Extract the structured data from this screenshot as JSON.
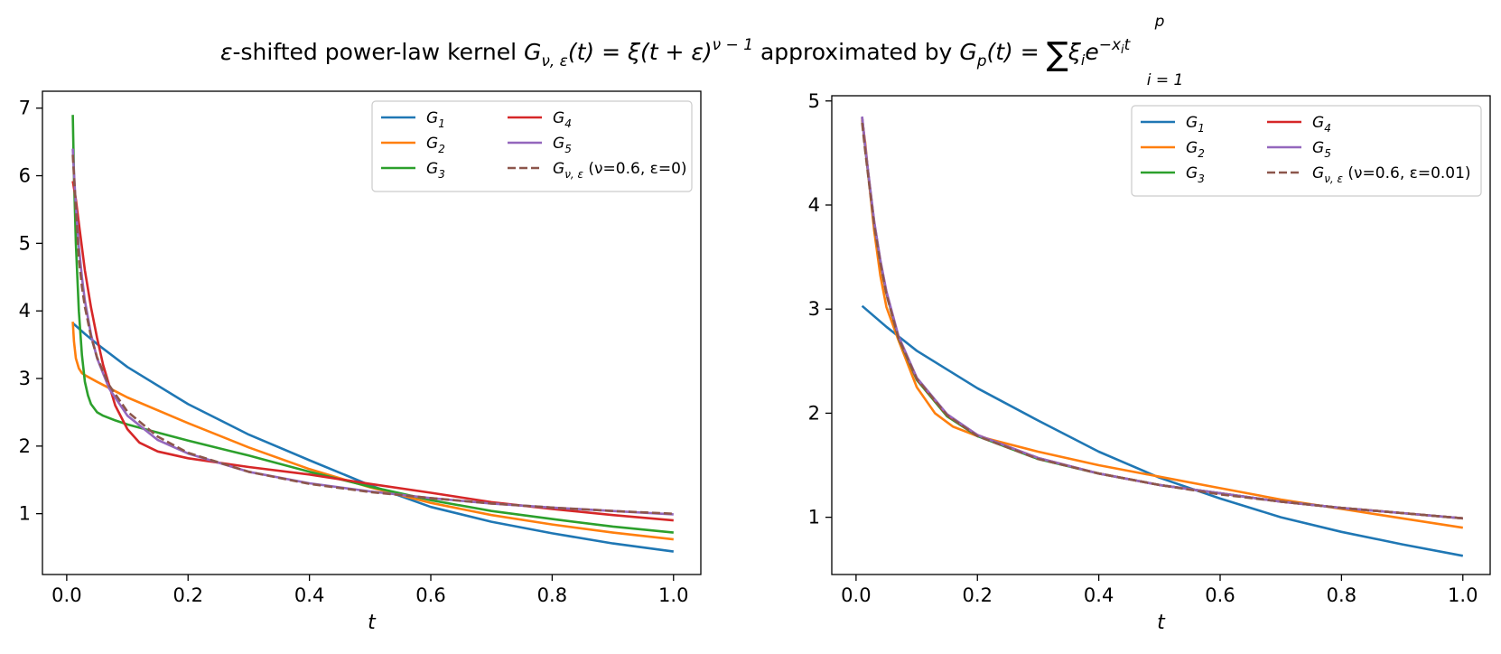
{
  "title": {
    "prefix": "ε",
    "part1": "-shifted power-law kernel ",
    "G": "G",
    "sub_nu_eps": "ν, ε",
    "eq1": "(t) = ξ(t + ε)",
    "exp1": "ν − 1",
    "mid": " approximated by ",
    "Gp": "G",
    "sub_p": "p",
    "eq2": "(t) = ",
    "sum": "∑",
    "sum_top": "p",
    "sum_bottom": "i = 1",
    "term": "ξ",
    "term_sub": "i",
    "term_e": "e",
    "exp2": "−x",
    "exp2_sub": "i",
    "exp2_t": "t"
  },
  "chart_data": [
    {
      "type": "line",
      "xlabel": "t",
      "ylabel": "",
      "xlim": [
        -0.04,
        1.045
      ],
      "ylim": [
        0.1,
        7.25
      ],
      "xticks": [
        0.0,
        0.2,
        0.4,
        0.6,
        0.8,
        1.0
      ],
      "xtick_labels": [
        "0.0",
        "0.2",
        "0.4",
        "0.6",
        "0.8",
        "1.0"
      ],
      "yticks": [
        1,
        2,
        3,
        4,
        5,
        6,
        7
      ],
      "ytick_labels": [
        "1",
        "2",
        "3",
        "4",
        "5",
        "6",
        "7"
      ],
      "legend_position": "top-right",
      "legend_columns": 2,
      "series": [
        {
          "name": "G",
          "name_sub": "1",
          "color": "#1f77b4",
          "dashed": false,
          "x": [
            0.01,
            0.03,
            0.05,
            0.1,
            0.2,
            0.3,
            0.4,
            0.5,
            0.6,
            0.7,
            0.8,
            0.9,
            1.0
          ],
          "y": [
            3.82,
            3.66,
            3.51,
            3.17,
            2.62,
            2.17,
            1.79,
            1.42,
            1.1,
            0.88,
            0.71,
            0.56,
            0.44
          ]
        },
        {
          "name": "G",
          "name_sub": "2",
          "color": "#ff7f0e",
          "dashed": false,
          "x": [
            0.01,
            0.012,
            0.015,
            0.02,
            0.025,
            0.03,
            0.05,
            0.1,
            0.2,
            0.3,
            0.4,
            0.5,
            0.6,
            0.7,
            0.8,
            0.9,
            1.0
          ],
          "y": [
            3.84,
            3.55,
            3.3,
            3.15,
            3.08,
            3.05,
            2.95,
            2.72,
            2.34,
            1.98,
            1.66,
            1.39,
            1.16,
            0.98,
            0.84,
            0.72,
            0.62
          ]
        },
        {
          "name": "G",
          "name_sub": "3",
          "color": "#2ca02c",
          "dashed": false,
          "x": [
            0.01,
            0.012,
            0.015,
            0.02,
            0.025,
            0.03,
            0.035,
            0.04,
            0.05,
            0.06,
            0.08,
            0.1,
            0.15,
            0.2,
            0.3,
            0.4,
            0.5,
            0.6,
            0.7,
            0.8,
            0.9,
            1.0
          ],
          "y": [
            6.9,
            6.0,
            5.0,
            4.0,
            3.35,
            2.95,
            2.75,
            2.62,
            2.5,
            2.45,
            2.38,
            2.32,
            2.2,
            2.08,
            1.86,
            1.62,
            1.4,
            1.2,
            1.04,
            0.92,
            0.81,
            0.72
          ]
        },
        {
          "name": "G",
          "name_sub": "4",
          "color": "#d62728",
          "dashed": false,
          "x": [
            0.01,
            0.015,
            0.02,
            0.03,
            0.04,
            0.05,
            0.06,
            0.08,
            0.1,
            0.12,
            0.15,
            0.2,
            0.3,
            0.4,
            0.5,
            0.6,
            0.7,
            0.8,
            0.9,
            1.0
          ],
          "y": [
            5.92,
            5.65,
            5.3,
            4.6,
            4.05,
            3.6,
            3.2,
            2.6,
            2.25,
            2.05,
            1.92,
            1.82,
            1.69,
            1.58,
            1.44,
            1.31,
            1.17,
            1.07,
            0.98,
            0.9
          ]
        },
        {
          "name": "G",
          "name_sub": "5",
          "color": "#9467bd",
          "dashed": false,
          "x": [
            0.01,
            0.012,
            0.015,
            0.02,
            0.025,
            0.03,
            0.04,
            0.05,
            0.07,
            0.1,
            0.15,
            0.2,
            0.3,
            0.4,
            0.5,
            0.6,
            0.7,
            0.8,
            0.9,
            1.0
          ],
          "y": [
            6.4,
            6.05,
            5.55,
            4.95,
            4.5,
            4.15,
            3.65,
            3.3,
            2.85,
            2.45,
            2.09,
            1.89,
            1.62,
            1.45,
            1.33,
            1.23,
            1.15,
            1.09,
            1.04,
            0.99
          ]
        },
        {
          "name": "G",
          "name_sub": "ν, ε",
          "label_suffix": " (ν=0.6, ε=0)",
          "color": "#8c564b",
          "dashed": true,
          "x": [
            0.01,
            0.012,
            0.015,
            0.02,
            0.025,
            0.03,
            0.04,
            0.05,
            0.07,
            0.1,
            0.15,
            0.2,
            0.3,
            0.4,
            0.5,
            0.6,
            0.7,
            0.8,
            0.9,
            1.0
          ],
          "y": [
            6.31,
            6.0,
            5.52,
            4.78,
            4.36,
            4.06,
            3.62,
            3.31,
            2.9,
            2.51,
            2.14,
            1.9,
            1.62,
            1.44,
            1.32,
            1.23,
            1.15,
            1.09,
            1.04,
            1.0
          ]
        }
      ]
    },
    {
      "type": "line",
      "xlabel": "t",
      "ylabel": "",
      "xlim": [
        -0.04,
        1.045
      ],
      "ylim": [
        0.45,
        5.05
      ],
      "xticks": [
        0.0,
        0.2,
        0.4,
        0.6,
        0.8,
        1.0
      ],
      "xtick_labels": [
        "0.0",
        "0.2",
        "0.4",
        "0.6",
        "0.8",
        "1.0"
      ],
      "yticks": [
        1,
        2,
        3,
        4,
        5
      ],
      "ytick_labels": [
        "1",
        "2",
        "3",
        "4",
        "5"
      ],
      "legend_position": "top-right",
      "legend_columns": 2,
      "series": [
        {
          "name": "G",
          "name_sub": "1",
          "color": "#1f77b4",
          "dashed": false,
          "x": [
            0.01,
            0.05,
            0.1,
            0.2,
            0.3,
            0.4,
            0.5,
            0.6,
            0.7,
            0.8,
            0.9,
            1.0
          ],
          "y": [
            3.03,
            2.83,
            2.6,
            2.24,
            1.93,
            1.63,
            1.38,
            1.18,
            1.0,
            0.86,
            0.74,
            0.63
          ]
        },
        {
          "name": "G",
          "name_sub": "2",
          "color": "#ff7f0e",
          "dashed": false,
          "x": [
            0.01,
            0.015,
            0.02,
            0.03,
            0.04,
            0.05,
            0.07,
            0.1,
            0.13,
            0.16,
            0.2,
            0.3,
            0.4,
            0.5,
            0.6,
            0.7,
            0.8,
            0.9,
            1.0
          ],
          "y": [
            4.82,
            4.6,
            4.3,
            3.75,
            3.32,
            3.02,
            2.7,
            2.25,
            2.0,
            1.87,
            1.78,
            1.63,
            1.5,
            1.39,
            1.28,
            1.17,
            1.08,
            0.99,
            0.9
          ]
        },
        {
          "name": "G",
          "name_sub": "3",
          "color": "#2ca02c",
          "dashed": false,
          "x": [
            0.01,
            0.015,
            0.02,
            0.03,
            0.04,
            0.05,
            0.07,
            0.1,
            0.15,
            0.2,
            0.3,
            0.4,
            0.5,
            0.6,
            0.7,
            0.8,
            0.9,
            1.0
          ],
          "y": [
            4.84,
            4.55,
            4.3,
            3.82,
            3.45,
            3.15,
            2.72,
            2.32,
            1.97,
            1.78,
            1.56,
            1.42,
            1.31,
            1.23,
            1.15,
            1.09,
            1.04,
            0.99
          ]
        },
        {
          "name": "G",
          "name_sub": "4",
          "color": "#d62728",
          "dashed": false,
          "x": [
            0.01,
            0.015,
            0.02,
            0.03,
            0.04,
            0.05,
            0.07,
            0.1,
            0.15,
            0.2,
            0.3,
            0.4,
            0.5,
            0.6,
            0.7,
            0.8,
            0.9,
            1.0
          ],
          "y": [
            4.84,
            4.56,
            4.31,
            3.83,
            3.46,
            3.16,
            2.73,
            2.33,
            1.98,
            1.79,
            1.57,
            1.42,
            1.31,
            1.23,
            1.15,
            1.09,
            1.04,
            0.99
          ]
        },
        {
          "name": "G",
          "name_sub": "5",
          "color": "#9467bd",
          "dashed": false,
          "x": [
            0.01,
            0.015,
            0.02,
            0.03,
            0.04,
            0.05,
            0.07,
            0.1,
            0.15,
            0.2,
            0.3,
            0.4,
            0.5,
            0.6,
            0.7,
            0.8,
            0.9,
            1.0
          ],
          "y": [
            4.85,
            4.57,
            4.32,
            3.84,
            3.47,
            3.17,
            2.74,
            2.34,
            1.99,
            1.79,
            1.57,
            1.42,
            1.31,
            1.23,
            1.15,
            1.09,
            1.04,
            0.99
          ]
        },
        {
          "name": "G",
          "name_sub": "ν, ε",
          "label_suffix": " (ν=0.6, ε=0.01)",
          "color": "#8c564b",
          "dashed": true,
          "x": [
            0.01,
            0.015,
            0.02,
            0.03,
            0.04,
            0.05,
            0.07,
            0.1,
            0.15,
            0.2,
            0.3,
            0.4,
            0.5,
            0.6,
            0.7,
            0.8,
            0.9,
            1.0
          ],
          "y": [
            4.79,
            4.52,
            4.28,
            3.8,
            3.44,
            3.14,
            2.72,
            2.33,
            1.98,
            1.78,
            1.56,
            1.42,
            1.31,
            1.22,
            1.15,
            1.09,
            1.04,
            0.99
          ]
        }
      ]
    }
  ]
}
